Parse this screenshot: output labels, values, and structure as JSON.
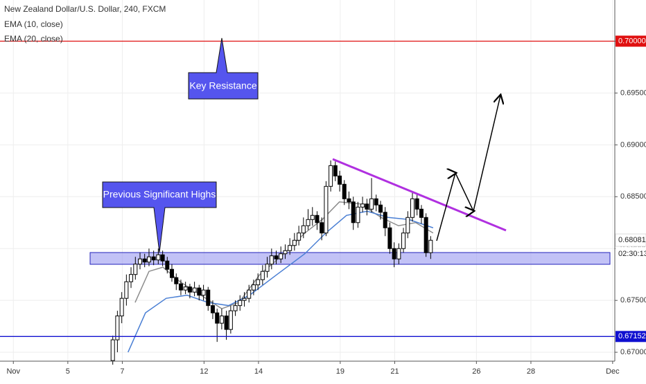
{
  "chart_data": {
    "type": "candlestick",
    "title": "New Zealand Dollar/U.S. Dollar, 240, FXCM",
    "up_color": "#ffffff",
    "down_color": "#000000",
    "xlim": [
      -2.49,
      20.08
    ],
    "xticks": [
      {
        "value": -2,
        "label": "Nov"
      },
      {
        "value": 0,
        "label": "5"
      },
      {
        "value": 2,
        "label": "7"
      },
      {
        "value": 5,
        "label": "12"
      },
      {
        "value": 7,
        "label": "14"
      },
      {
        "value": 10,
        "label": "19"
      },
      {
        "value": 12,
        "label": "21"
      },
      {
        "value": 15,
        "label": "26"
      },
      {
        "value": 17,
        "label": "28"
      },
      {
        "value": 20,
        "label": "Dec"
      }
    ],
    "ylim": [
      0.66914,
      0.70397
    ],
    "yticks": [
      {
        "value": 0.67,
        "label": "0.67000"
      },
      {
        "value": 0.675,
        "label": "0.67500"
      },
      {
        "value": 0.68,
        "label": "0.68000"
      },
      {
        "value": 0.685,
        "label": "0.68500"
      },
      {
        "value": 0.69,
        "label": "0.69000"
      },
      {
        "value": 0.695,
        "label": "0.69500"
      },
      {
        "value": 0.7,
        "label": "0.70000"
      }
    ],
    "grid": true,
    "x": [
      1.65,
      1.82,
      1.98,
      2.15,
      2.32,
      2.48,
      2.65,
      2.82,
      2.98,
      3.15,
      3.32,
      3.48,
      3.65,
      3.82,
      3.98,
      4.15,
      4.32,
      4.48,
      4.65,
      4.82,
      4.98,
      5.15,
      5.32,
      5.48,
      5.65,
      5.82,
      5.98,
      6.15,
      6.32,
      6.48,
      6.65,
      6.82,
      6.98,
      7.15,
      7.32,
      7.48,
      7.65,
      7.82,
      7.98,
      8.15,
      8.32,
      8.48,
      8.65,
      8.82,
      8.98,
      9.15,
      9.32,
      9.48,
      9.65,
      9.82,
      9.98,
      10.15,
      10.32,
      10.48,
      10.65,
      10.82,
      10.98,
      11.15,
      11.32,
      11.48,
      11.65,
      11.82,
      11.98,
      12.15,
      12.32,
      12.48,
      12.65,
      12.82,
      12.98,
      13.15,
      13.32
    ],
    "candles": [
      [
        0.6692,
        0.6716,
        0.6688,
        0.6712
      ],
      [
        0.6712,
        0.674,
        0.67,
        0.6735
      ],
      [
        0.6735,
        0.6758,
        0.6728,
        0.6752
      ],
      [
        0.6752,
        0.6775,
        0.6745,
        0.6768
      ],
      [
        0.6768,
        0.6782,
        0.6762,
        0.6775
      ],
      [
        0.6775,
        0.6792,
        0.677,
        0.6785
      ],
      [
        0.6785,
        0.6796,
        0.678,
        0.679
      ],
      [
        0.679,
        0.6795,
        0.6782,
        0.6787
      ],
      [
        0.6787,
        0.68,
        0.6783,
        0.6792
      ],
      [
        0.6792,
        0.6798,
        0.6784,
        0.6789
      ],
      [
        0.6789,
        0.68,
        0.6785,
        0.6794
      ],
      [
        0.6794,
        0.6798,
        0.6783,
        0.6788
      ],
      [
        0.6788,
        0.6792,
        0.6776,
        0.678
      ],
      [
        0.678,
        0.6785,
        0.6768,
        0.6772
      ],
      [
        0.6772,
        0.6776,
        0.676,
        0.6766
      ],
      [
        0.6766,
        0.677,
        0.6755,
        0.676
      ],
      [
        0.676,
        0.6768,
        0.6756,
        0.6763
      ],
      [
        0.6763,
        0.6766,
        0.6752,
        0.6758
      ],
      [
        0.6758,
        0.6768,
        0.6754,
        0.6762
      ],
      [
        0.6762,
        0.6765,
        0.675,
        0.6755
      ],
      [
        0.6755,
        0.6765,
        0.675,
        0.676
      ],
      [
        0.676,
        0.6763,
        0.674,
        0.6745
      ],
      [
        0.6745,
        0.675,
        0.6732,
        0.6738
      ],
      [
        0.6738,
        0.6742,
        0.671,
        0.6728
      ],
      [
        0.6728,
        0.6742,
        0.6722,
        0.6735
      ],
      [
        0.6735,
        0.674,
        0.6712,
        0.6722
      ],
      [
        0.6722,
        0.6745,
        0.6718,
        0.674
      ],
      [
        0.674,
        0.675,
        0.6735,
        0.6745
      ],
      [
        0.6745,
        0.6755,
        0.674,
        0.675
      ],
      [
        0.675,
        0.6758,
        0.6744,
        0.6752
      ],
      [
        0.6752,
        0.6765,
        0.6748,
        0.676
      ],
      [
        0.676,
        0.677,
        0.6755,
        0.6765
      ],
      [
        0.6765,
        0.6776,
        0.676,
        0.677
      ],
      [
        0.677,
        0.6784,
        0.6765,
        0.6778
      ],
      [
        0.6778,
        0.6792,
        0.6772,
        0.6785
      ],
      [
        0.6785,
        0.68,
        0.678,
        0.6793
      ],
      [
        0.6793,
        0.6798,
        0.6785,
        0.679
      ],
      [
        0.679,
        0.6802,
        0.6786,
        0.6795
      ],
      [
        0.6795,
        0.6804,
        0.679,
        0.6798
      ],
      [
        0.6798,
        0.681,
        0.6794,
        0.6803
      ],
      [
        0.6803,
        0.6815,
        0.6798,
        0.6808
      ],
      [
        0.6808,
        0.6822,
        0.6803,
        0.6815
      ],
      [
        0.6815,
        0.683,
        0.681,
        0.6822
      ],
      [
        0.6822,
        0.6838,
        0.6818,
        0.6828
      ],
      [
        0.6828,
        0.684,
        0.6822,
        0.6832
      ],
      [
        0.6832,
        0.6836,
        0.6818,
        0.6825
      ],
      [
        0.6825,
        0.683,
        0.6808,
        0.6815
      ],
      [
        0.6815,
        0.6865,
        0.6812,
        0.686
      ],
      [
        0.686,
        0.6885,
        0.6855,
        0.688
      ],
      [
        0.688,
        0.6884,
        0.6865,
        0.687
      ],
      [
        0.687,
        0.6875,
        0.6855,
        0.6862
      ],
      [
        0.6862,
        0.6866,
        0.6842,
        0.6848
      ],
      [
        0.6848,
        0.6855,
        0.6838,
        0.6845
      ],
      [
        0.6845,
        0.685,
        0.6818,
        0.6825
      ],
      [
        0.6825,
        0.6845,
        0.682,
        0.684
      ],
      [
        0.684,
        0.685,
        0.6835,
        0.6843
      ],
      [
        0.6843,
        0.6848,
        0.6832,
        0.6838
      ],
      [
        0.6838,
        0.6868,
        0.6835,
        0.6848
      ],
      [
        0.6848,
        0.6852,
        0.6836,
        0.6842
      ],
      [
        0.6842,
        0.6846,
        0.6828,
        0.6835
      ],
      [
        0.6835,
        0.684,
        0.6812,
        0.682
      ],
      [
        0.682,
        0.6825,
        0.6795,
        0.68
      ],
      [
        0.68,
        0.6806,
        0.6782,
        0.679
      ],
      [
        0.679,
        0.6805,
        0.6785,
        0.68
      ],
      [
        0.68,
        0.682,
        0.6796,
        0.6815
      ],
      [
        0.6815,
        0.6836,
        0.681,
        0.683
      ],
      [
        0.683,
        0.6855,
        0.6826,
        0.6848
      ],
      [
        0.6848,
        0.6852,
        0.6832,
        0.6838
      ],
      [
        0.6838,
        0.6842,
        0.6824,
        0.683
      ],
      [
        0.683,
        0.6834,
        0.6792,
        0.6796
      ],
      [
        0.6796,
        0.6812,
        0.679,
        0.6808
      ]
    ],
    "indicators": [
      {
        "name": "EMA (10, close)",
        "color": "#8c8c8c",
        "x": [
          2.47,
          2.98,
          3.49,
          4.12,
          4.89,
          5.65,
          6.28,
          7.05,
          7.94,
          8.7,
          9.34,
          9.97,
          10.74,
          11.5,
          12.14,
          12.77,
          13.41
        ],
        "values": [
          0.6748,
          0.6778,
          0.6782,
          0.6768,
          0.6755,
          0.6742,
          0.6748,
          0.6775,
          0.6795,
          0.6815,
          0.6828,
          0.6845,
          0.6843,
          0.683,
          0.6822,
          0.6825,
          0.6815
        ]
      },
      {
        "name": "EMA (20, close)",
        "color": "#4a7fd4",
        "x": [
          2.21,
          2.85,
          3.61,
          4.38,
          5.14,
          5.9,
          6.67,
          7.68,
          8.7,
          9.47,
          10.23,
          10.99,
          11.76,
          12.52,
          13.41
        ],
        "values": [
          0.67,
          0.6738,
          0.6752,
          0.6755,
          0.6748,
          0.6745,
          0.6755,
          0.6775,
          0.6795,
          0.6815,
          0.6832,
          0.6836,
          0.683,
          0.6828,
          0.682
        ]
      }
    ],
    "price_lines": [
      {
        "value": 0.7,
        "label": "0.70000",
        "color": "#e01010"
      },
      {
        "value": 0.67152,
        "label": "0.67152",
        "color": "#1010d0"
      }
    ],
    "last_price": {
      "value": 0.68081,
      "label": "0.68081",
      "countdown": "02:30:13"
    },
    "annotations": [
      "Key Resistance",
      "Previous Significant Highs"
    ]
  }
}
